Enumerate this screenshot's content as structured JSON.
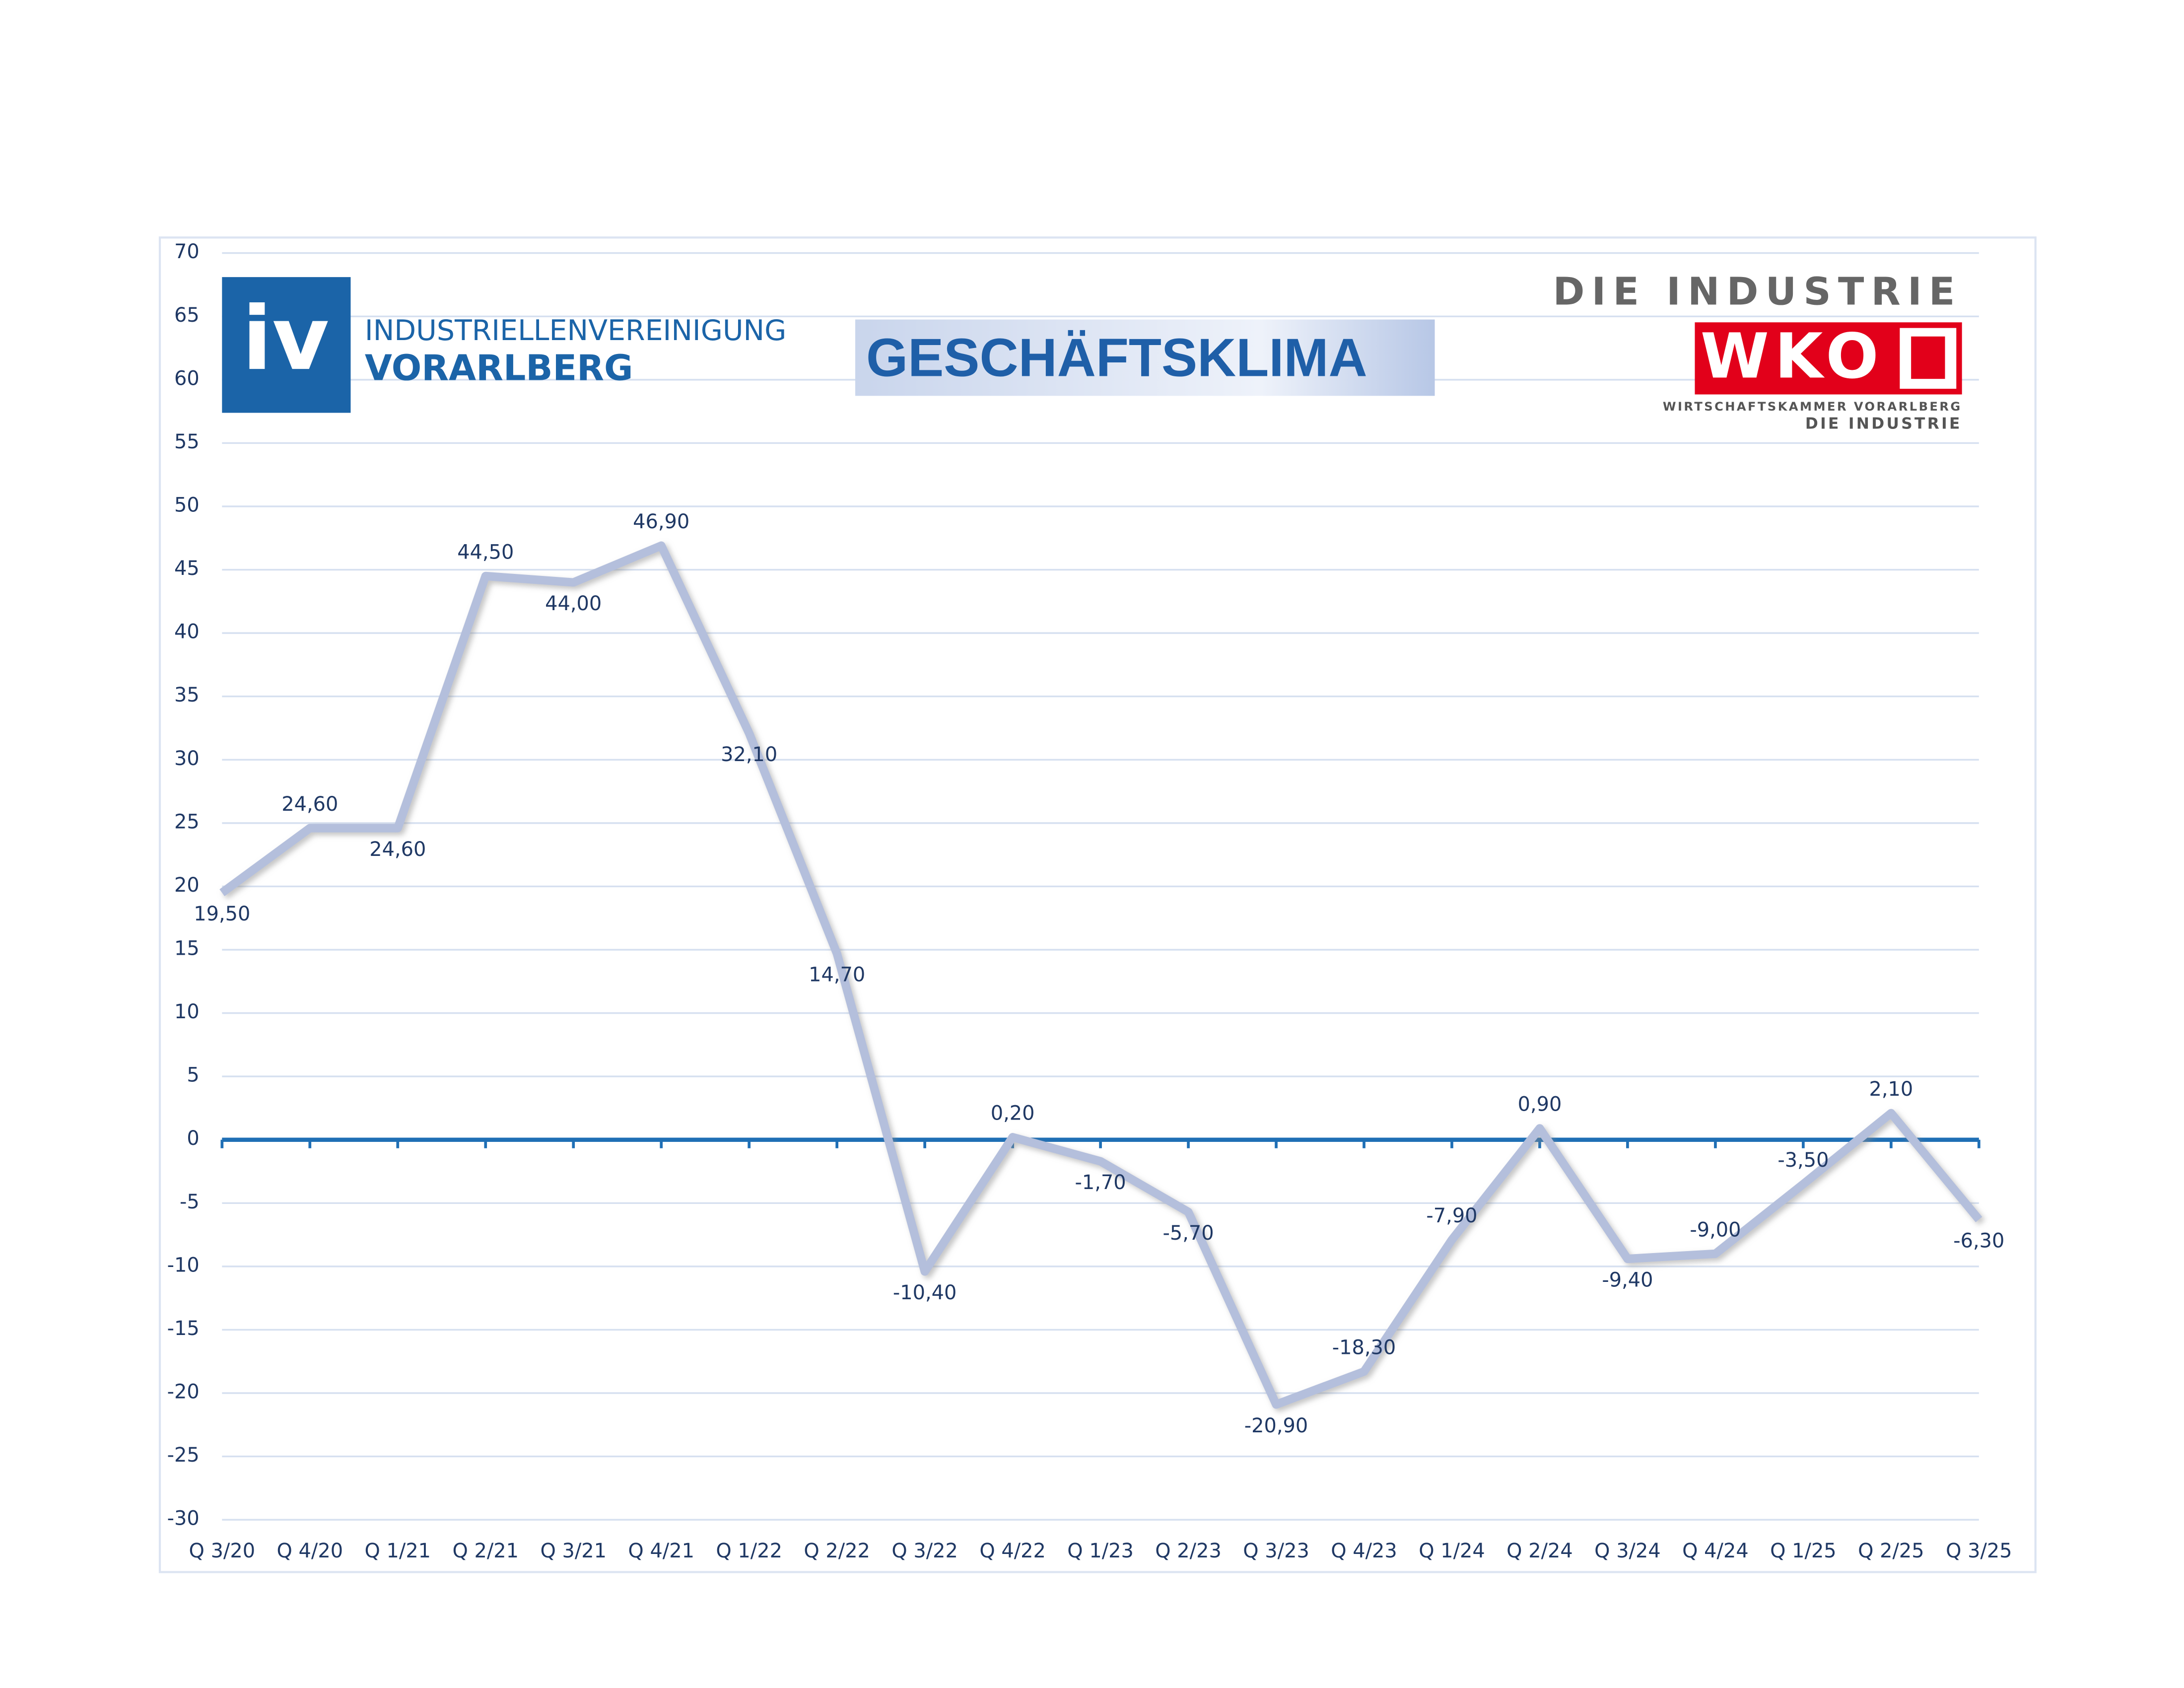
{
  "chart_data": {
    "type": "line",
    "title": "GESCHÄFTSKLIMA",
    "categories": [
      "Q 3/20",
      "Q 4/20",
      "Q 1/21",
      "Q 2/21",
      "Q 3/21",
      "Q 4/21",
      "Q 1/22",
      "Q 2/22",
      "Q 3/22",
      "Q 4/22",
      "Q 1/23",
      "Q 2/23",
      "Q 3/23",
      "Q 4/23",
      "Q 1/24",
      "Q 2/24",
      "Q 3/24",
      "Q 4/24",
      "Q 1/25",
      "Q 2/25",
      "Q 3/25"
    ],
    "series": [
      {
        "name": "Geschäftsklima",
        "color": "#b4bfdc",
        "values": [
          19.5,
          24.6,
          24.6,
          44.5,
          44.0,
          46.9,
          32.1,
          14.7,
          -10.4,
          0.2,
          -1.7,
          -5.7,
          -20.9,
          -18.3,
          -7.9,
          0.9,
          -9.4,
          -9.0,
          -3.5,
          2.1,
          -6.3
        ],
        "value_labels": [
          "19,50",
          "24,60",
          "24,60",
          "44,50",
          "44,00",
          "46,90",
          "32,10",
          "14,70",
          "-10,40",
          "0,20",
          "-1,70",
          "-5,70",
          "-20,90",
          "-18,30",
          "-7,90",
          "0,90",
          "-9,40",
          "-9,00",
          "-3,50",
          "2,10",
          "-6,30"
        ]
      }
    ],
    "ylim": [
      -30,
      70
    ],
    "yticks": [
      -30,
      -25,
      -20,
      -15,
      -10,
      -5,
      0,
      5,
      10,
      15,
      20,
      25,
      30,
      35,
      40,
      45,
      50,
      55,
      60,
      65,
      70
    ],
    "grid": true
  },
  "logos": {
    "iv_mark": "iv",
    "iv_name": "INDUSTRIELLENVEREINIGUNG",
    "iv_region": "VORARLBERG",
    "wko_top": "DIE INDUSTRIE",
    "wko_mark": "WKO",
    "wko_name": "WIRTSCHAFTSKAMMER VORARLBERG",
    "wko_bottom": "DIE INDUSTRIE"
  }
}
